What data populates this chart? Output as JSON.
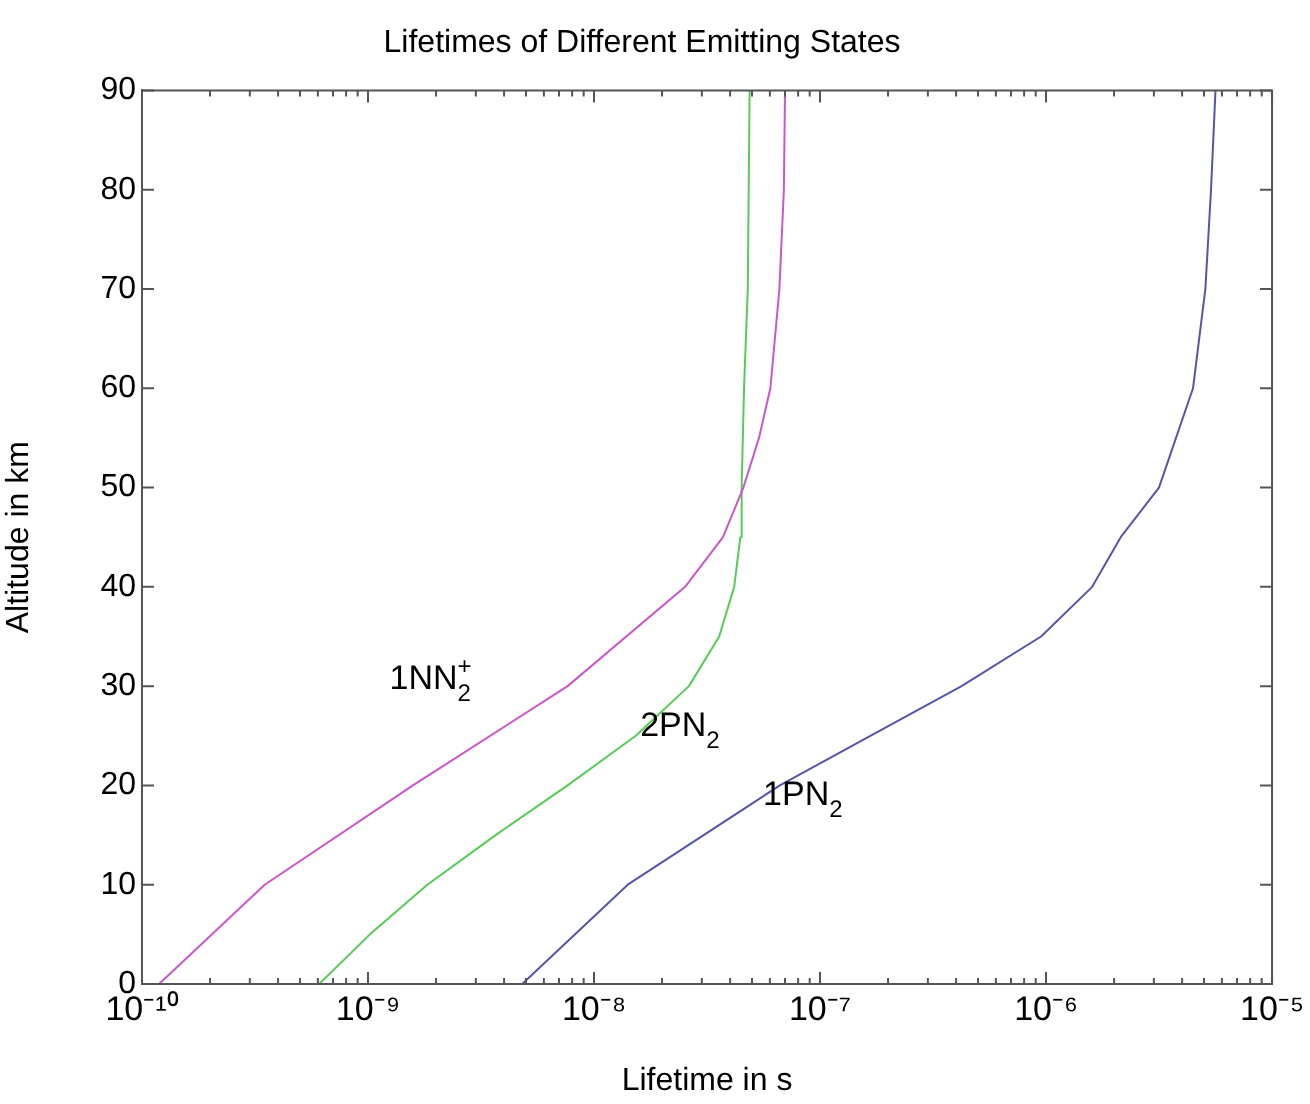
{
  "chart_data": {
    "type": "line",
    "title": "Lifetimes of Different Emitting States",
    "xlabel": "Lifetime in s",
    "ylabel": "Altitude in km",
    "log": "x",
    "marker": "none",
    "line_style": "solid",
    "xlim": [
      1e-10,
      1e-05
    ],
    "ylim": [
      0,
      90
    ],
    "xticks": [
      {
        "value": 1e-10,
        "label": "10⁻¹⁰"
      },
      {
        "value": 2e-10,
        "label": null
      },
      {
        "value": 3e-10,
        "label": null
      },
      {
        "value": 4e-10,
        "label": null
      },
      {
        "value": 5e-10,
        "label": null
      },
      {
        "value": 6e-10,
        "label": null
      },
      {
        "value": 7e-10,
        "label": null
      },
      {
        "value": 8e-10,
        "label": null
      },
      {
        "value": 9e-10,
        "label": null
      },
      {
        "value": 1e-09,
        "label": "10⁻⁹"
      },
      {
        "value": 2e-09,
        "label": null
      },
      {
        "value": 3e-09,
        "label": null
      },
      {
        "value": 4e-09,
        "label": null
      },
      {
        "value": 5e-09,
        "label": null
      },
      {
        "value": 6e-09,
        "label": null
      },
      {
        "value": 7e-09,
        "label": null
      },
      {
        "value": 8e-09,
        "label": null
      },
      {
        "value": 9e-09,
        "label": null
      },
      {
        "value": 1e-08,
        "label": "10⁻⁸"
      },
      {
        "value": 2e-08,
        "label": null
      },
      {
        "value": 3e-08,
        "label": null
      },
      {
        "value": 4e-08,
        "label": null
      },
      {
        "value": 5e-08,
        "label": null
      },
      {
        "value": 6e-08,
        "label": null
      },
      {
        "value": 7e-08,
        "label": null
      },
      {
        "value": 8e-08,
        "label": null
      },
      {
        "value": 9e-08,
        "label": null
      },
      {
        "value": 1e-07,
        "label": "10⁻⁷"
      },
      {
        "value": 2e-07,
        "label": null
      },
      {
        "value": 3e-07,
        "label": null
      },
      {
        "value": 4e-07,
        "label": null
      },
      {
        "value": 5e-07,
        "label": null
      },
      {
        "value": 6e-07,
        "label": null
      },
      {
        "value": 7e-07,
        "label": null
      },
      {
        "value": 8e-07,
        "label": null
      },
      {
        "value": 9e-07,
        "label": null
      },
      {
        "value": 1e-06,
        "label": "10⁻⁶"
      },
      {
        "value": 2e-06,
        "label": null
      },
      {
        "value": 3e-06,
        "label": null
      },
      {
        "value": 4e-06,
        "label": null
      },
      {
        "value": 5e-06,
        "label": null
      },
      {
        "value": 6e-06,
        "label": null
      },
      {
        "value": 7e-06,
        "label": null
      },
      {
        "value": 8e-06,
        "label": null
      },
      {
        "value": 9e-06,
        "label": null
      },
      {
        "value": 1e-05,
        "label": "10⁻⁵"
      }
    ],
    "yticks": [
      0,
      10,
      20,
      30,
      40,
      50,
      60,
      70,
      80,
      90
    ],
    "series": [
      {
        "color": "#cc55cc",
        "x": [
          1.19e-10,
          3.49e-10,
          1.58e-09,
          7.64e-09,
          2.53e-08,
          3.72e-08,
          4.58e-08,
          5.37e-08,
          6.03e-08,
          6.61e-08,
          6.92e-08,
          7e-08
        ],
        "values": [
          0,
          10,
          20,
          30,
          40,
          45,
          50,
          55,
          60,
          70,
          80,
          90
        ]
      },
      {
        "color": "#55cc55",
        "x": [
          6.08e-10,
          1.02e-09,
          1.83e-09,
          3.67e-09,
          7.64e-09,
          1.53e-08,
          2.63e-08,
          3.58e-08,
          4.17e-08,
          4.44e-08,
          4.5e-08,
          4.61e-08,
          4.79e-08,
          4.88e-08
        ],
        "values": [
          0,
          5,
          10,
          15,
          20,
          25,
          30,
          35,
          40,
          45,
          50,
          60,
          70,
          90
        ]
      },
      {
        "color": "#5555aa",
        "x": [
          4.81e-09,
          1.41e-08,
          6.64e-08,
          1.67e-07,
          4.23e-07,
          9.51e-07,
          1.6e-06,
          2.14e-06,
          3.16e-06,
          4.47e-06,
          5.07e-06,
          5.37e-06,
          5.62e-06
        ],
        "values": [
          0,
          10,
          20,
          25,
          30,
          35,
          40,
          45,
          50,
          60,
          70,
          80,
          90
        ]
      }
    ],
    "annotations": [
      "1NN$_{2}$$^{+}$",
      {
        "text": "2PN$_{2}$",
        "x": 1.6e-08,
        "y": 25
      },
      {
        "text": "1PN$_{2}$",
        "x": 5.6e-08,
        "y": 18
      }
    ]
  }
}
